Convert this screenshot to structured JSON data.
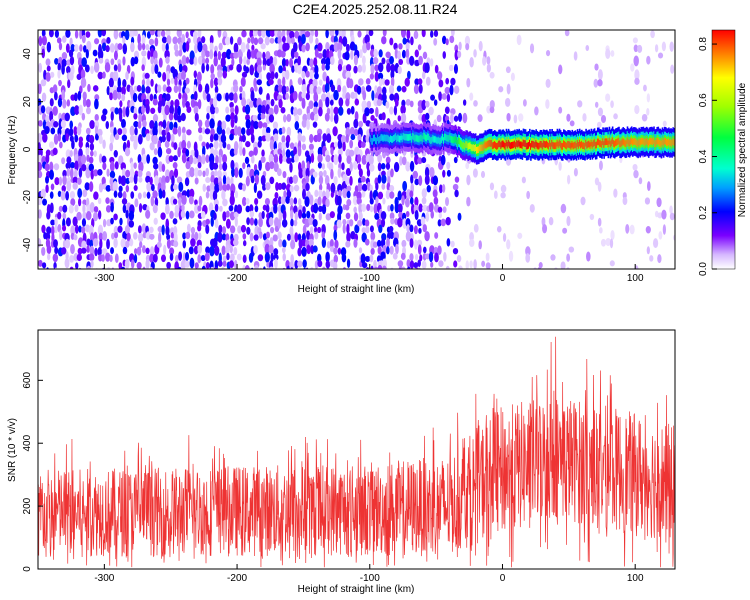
{
  "title": "C2E4.2025.252.08.11.R24",
  "chart_data": [
    {
      "type": "heatmap",
      "xlabel": "Height of straight line (km)",
      "ylabel": "Frequency (Hz)",
      "xlim": [
        -350,
        130
      ],
      "ylim": [
        -50,
        50
      ],
      "xticks": [
        -300,
        -200,
        -100,
        0,
        100
      ],
      "xtick_labels": [
        "-300",
        "-200",
        "-100",
        "0",
        "100"
      ],
      "yticks": [
        -40,
        -20,
        0,
        20,
        40
      ],
      "ytick_labels": [
        "-40",
        "-20",
        "0",
        "20",
        "40"
      ],
      "colorbar": {
        "label": "Normalized spectral amplitude",
        "range": [
          0.0,
          0.85
        ],
        "ticks": [
          0.0,
          0.2,
          0.4,
          0.6,
          0.8
        ],
        "tick_labels": [
          "0.0",
          "0.2",
          "0.4",
          "0.6",
          "0.8"
        ]
      },
      "signal_track": {
        "description_x": [
          -100,
          -80,
          -60,
          -50,
          -40,
          -30,
          -20,
          -10,
          0,
          20,
          40,
          60,
          80,
          100,
          130
        ],
        "frequency": [
          4,
          5,
          5,
          4,
          5,
          2,
          0,
          2,
          2,
          2,
          2,
          2,
          3,
          3,
          3
        ],
        "amplitude": [
          0.3,
          0.35,
          0.4,
          0.35,
          0.4,
          0.55,
          0.7,
          0.8,
          0.85,
          0.85,
          0.8,
          0.8,
          0.8,
          0.75,
          0.75
        ]
      },
      "noise_level_left": 0.12,
      "noise_level_right": 0.03
    },
    {
      "type": "line",
      "color": "#ee3333",
      "xlabel": "Height of straight line (km)",
      "ylabel": "SNR (10 * v/v)",
      "xlim": [
        -350,
        130
      ],
      "ylim": [
        0,
        760
      ],
      "xticks": [
        -300,
        -200,
        -100,
        0,
        100
      ],
      "xtick_labels": [
        "-300",
        "-200",
        "-100",
        "0",
        "100"
      ],
      "yticks": [
        0,
        200,
        400,
        600
      ],
      "ytick_labels": [
        "0",
        "200",
        "400",
        "600"
      ],
      "envelope": {
        "x": [
          -350,
          -300,
          -200,
          -100,
          -40,
          -20,
          0,
          40,
          80,
          130
        ],
        "lower": [
          40,
          40,
          40,
          40,
          40,
          80,
          100,
          160,
          120,
          80
        ],
        "upper": [
          320,
          320,
          330,
          340,
          360,
          450,
          520,
          560,
          520,
          460
        ],
        "spike_max": [
          420,
          420,
          440,
          440,
          470,
          560,
          650,
          760,
          640,
          560
        ]
      }
    }
  ]
}
